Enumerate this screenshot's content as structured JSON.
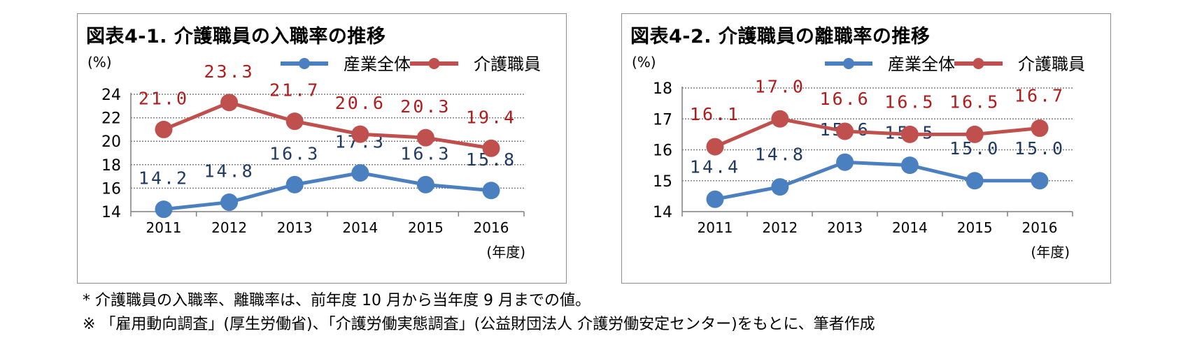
{
  "charts": [
    {
      "title": "図表4-1. 介護職員の入職率の推移",
      "unit": "(%)",
      "xunit": "(年度)",
      "chart_data": {
        "type": "line",
        "title": "図表4-1. 介護職員の入職率の推移",
        "xlabel": "(年度)",
        "ylabel": "(%)",
        "categories": [
          "2011",
          "2012",
          "2013",
          "2014",
          "2015",
          "2016"
        ],
        "ylim": [
          14,
          24
        ],
        "yticks": [
          14,
          16,
          18,
          20,
          22,
          24
        ],
        "grid": true,
        "legend": "top-right",
        "series": [
          {
            "name": "産業全体",
            "color": "#4a7fc0",
            "label_color": "#1f3a64",
            "values": [
              14.2,
              14.8,
              16.3,
              17.3,
              16.3,
              15.8
            ],
            "labels": [
              "14.2",
              "14.8",
              "16.3",
              "17.3",
              "16.3",
              "15.8"
            ]
          },
          {
            "name": "介護職員",
            "color": "#c0504d",
            "label_color": "#b01c1c",
            "values": [
              21.0,
              23.3,
              21.7,
              20.6,
              20.3,
              19.4
            ],
            "labels": [
              "21.0",
              "23.3",
              "21.7",
              "20.6",
              "20.3",
              "19.4"
            ]
          }
        ]
      }
    },
    {
      "title": "図表4-2. 介護職員の離職率の推移",
      "unit": "(%)",
      "xunit": "(年度)",
      "chart_data": {
        "type": "line",
        "title": "図表4-2. 介護職員の離職率の推移",
        "xlabel": "(年度)",
        "ylabel": "(%)",
        "categories": [
          "2011",
          "2012",
          "2013",
          "2014",
          "2015",
          "2016"
        ],
        "ylim": [
          14,
          18
        ],
        "yticks": [
          14,
          15,
          16,
          17,
          18
        ],
        "grid": true,
        "legend": "top-right",
        "series": [
          {
            "name": "産業全体",
            "color": "#4a7fc0",
            "label_color": "#1f3a64",
            "values": [
              14.4,
              14.8,
              15.6,
              15.5,
              15.0,
              15.0
            ],
            "labels": [
              "14.4",
              "14.8",
              "15.6",
              "15.5",
              "15.0",
              "15.0"
            ]
          },
          {
            "name": "介護職員",
            "color": "#c0504d",
            "label_color": "#b01c1c",
            "values": [
              16.1,
              17.0,
              16.6,
              16.5,
              16.5,
              16.7
            ],
            "labels": [
              "16.1",
              "17.0",
              "16.6",
              "16.5",
              "16.5",
              "16.7"
            ]
          }
        ]
      }
    }
  ],
  "notes": [
    "* 介護職員の入職率、離職率は、前年度 10 月から当年度 9 月までの値。",
    "※ 「雇用動向調査」(厚生労働省)、「介護労働実態調査」(公益財団法人 介護労働安定センター)をもとに、筆者作成"
  ]
}
